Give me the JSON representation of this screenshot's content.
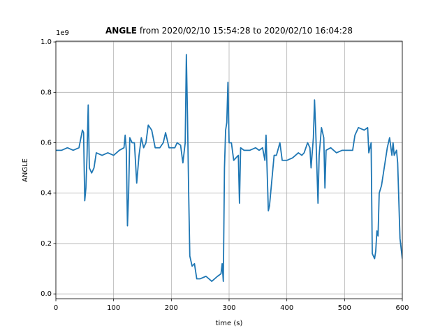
{
  "chart_data": {
    "type": "line",
    "title": {
      "name": "ANGLE",
      "text": "from 2020/02/10 15:54:28 to 2020/02/10 16:04:28"
    },
    "x_label": "time (s)",
    "y_label": "ANGLE",
    "y_offset_text": "1e9",
    "xlim": [
      0,
      600
    ],
    "xticks": [
      0,
      100,
      200,
      300,
      400,
      500,
      600
    ],
    "ylim": [
      -0.019,
      1.003
    ],
    "yticks": [
      {
        "value": 0,
        "label": "0.0"
      },
      0.2,
      0.4,
      0.6,
      0.8,
      {
        "value": 1,
        "label": "1.0"
      }
    ],
    "grid": true,
    "series": [
      {
        "name": "ANGLE",
        "color": "#1f77b4",
        "x": [
          0,
          10,
          20,
          30,
          40,
          46,
          48,
          50,
          52,
          54,
          56,
          58,
          62,
          66,
          70,
          80,
          90,
          100,
          110,
          118,
          120,
          122,
          124,
          126,
          128,
          132,
          136,
          140,
          144,
          148,
          152,
          156,
          160,
          166,
          172,
          180,
          186,
          190,
          196,
          206,
          210,
          216,
          220,
          224,
          226,
          228,
          230,
          232,
          236,
          240,
          244,
          250,
          260,
          270,
          280,
          286,
          288,
          290,
          292,
          294,
          296,
          298,
          300,
          304,
          308,
          312,
          316,
          318,
          320,
          326,
          336,
          346,
          352,
          358,
          362,
          364,
          366,
          368,
          370,
          374,
          378,
          382,
          388,
          392,
          400,
          410,
          420,
          426,
          430,
          436,
          440,
          442,
          444,
          446,
          448,
          450,
          454,
          456,
          460,
          464,
          466,
          468,
          476,
          486,
          496,
          506,
          514,
          518,
          524,
          534,
          540,
          542,
          546,
          548,
          550,
          552,
          554,
          556,
          558,
          560,
          564,
          570,
          574,
          578,
          582,
          584,
          586,
          590,
          592,
          596,
          600
        ],
        "values": [
          0.57,
          0.57,
          0.58,
          0.57,
          0.58,
          0.65,
          0.64,
          0.37,
          0.42,
          0.55,
          0.75,
          0.5,
          0.48,
          0.5,
          0.56,
          0.55,
          0.56,
          0.55,
          0.57,
          0.58,
          0.63,
          0.57,
          0.27,
          0.4,
          0.62,
          0.6,
          0.6,
          0.44,
          0.55,
          0.62,
          0.58,
          0.6,
          0.67,
          0.65,
          0.58,
          0.58,
          0.6,
          0.64,
          0.58,
          0.58,
          0.6,
          0.59,
          0.52,
          0.6,
          0.95,
          0.7,
          0.4,
          0.15,
          0.11,
          0.12,
          0.06,
          0.06,
          0.07,
          0.05,
          0.07,
          0.08,
          0.12,
          0.05,
          0.5,
          0.65,
          0.68,
          0.84,
          0.6,
          0.6,
          0.53,
          0.54,
          0.55,
          0.36,
          0.58,
          0.57,
          0.57,
          0.58,
          0.57,
          0.58,
          0.53,
          0.63,
          0.48,
          0.33,
          0.35,
          0.45,
          0.55,
          0.55,
          0.6,
          0.53,
          0.53,
          0.54,
          0.56,
          0.55,
          0.56,
          0.6,
          0.58,
          0.5,
          0.56,
          0.62,
          0.77,
          0.65,
          0.36,
          0.55,
          0.66,
          0.62,
          0.42,
          0.57,
          0.58,
          0.56,
          0.57,
          0.57,
          0.57,
          0.63,
          0.66,
          0.65,
          0.66,
          0.56,
          0.6,
          0.16,
          0.15,
          0.14,
          0.17,
          0.25,
          0.23,
          0.4,
          0.43,
          0.52,
          0.58,
          0.62,
          0.55,
          0.6,
          0.55,
          0.57,
          0.52,
          0.22,
          0.14
        ]
      }
    ]
  }
}
